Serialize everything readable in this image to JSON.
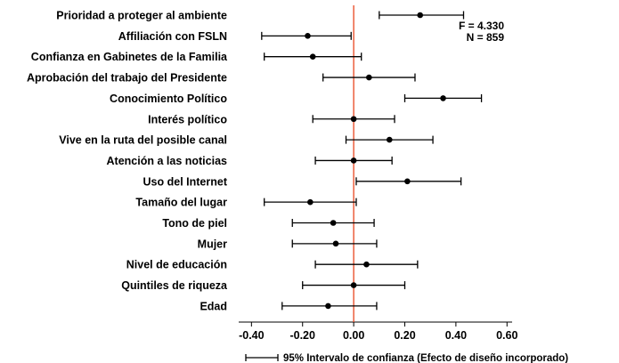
{
  "chart_data": {
    "type": "scatter",
    "orientation": "horizontal",
    "categories": [
      "Prioridad a proteger al ambiente",
      "Affiliación con FSLN",
      "Confianza en Gabinetes de la Familia",
      "Aprobación del trabajo del Presidente",
      "Conocimiento Político",
      "Interés político",
      "Vive en la ruta del posible canal",
      "Atención a las noticias",
      "Uso del Internet",
      "Tamaño del lugar",
      "Tono de piel",
      "Mujer",
      "Nivel de educación",
      "Quintiles de riqueza",
      "Edad"
    ],
    "estimates": [
      0.26,
      -0.18,
      -0.16,
      0.06,
      0.35,
      0.0,
      0.14,
      0.0,
      0.21,
      -0.17,
      -0.08,
      -0.07,
      0.05,
      0.0,
      -0.1
    ],
    "ci_lower": [
      0.1,
      -0.36,
      -0.35,
      -0.12,
      0.2,
      -0.16,
      -0.03,
      -0.15,
      0.01,
      -0.35,
      -0.24,
      -0.24,
      -0.15,
      -0.2,
      -0.28
    ],
    "ci_upper": [
      0.43,
      -0.01,
      0.03,
      0.24,
      0.5,
      0.16,
      0.31,
      0.15,
      0.42,
      0.01,
      0.08,
      0.09,
      0.25,
      0.2,
      0.09
    ],
    "xlim": [
      -0.45,
      0.62
    ],
    "xticks": [
      "-0.40",
      "-0.20",
      "0.00",
      "0.20",
      "0.40",
      "0.60"
    ],
    "xtick_values": [
      -0.4,
      -0.2,
      0.0,
      0.2,
      0.4,
      0.6
    ],
    "reference_line": 0,
    "reference_color": "#e8451e",
    "marker_color": "#000000",
    "stats": {
      "f": "F = 4.330",
      "n": "N = 859"
    },
    "legend": "95% Intervalo de confianza (Efecto de diseño incorporado)",
    "grid": false
  }
}
